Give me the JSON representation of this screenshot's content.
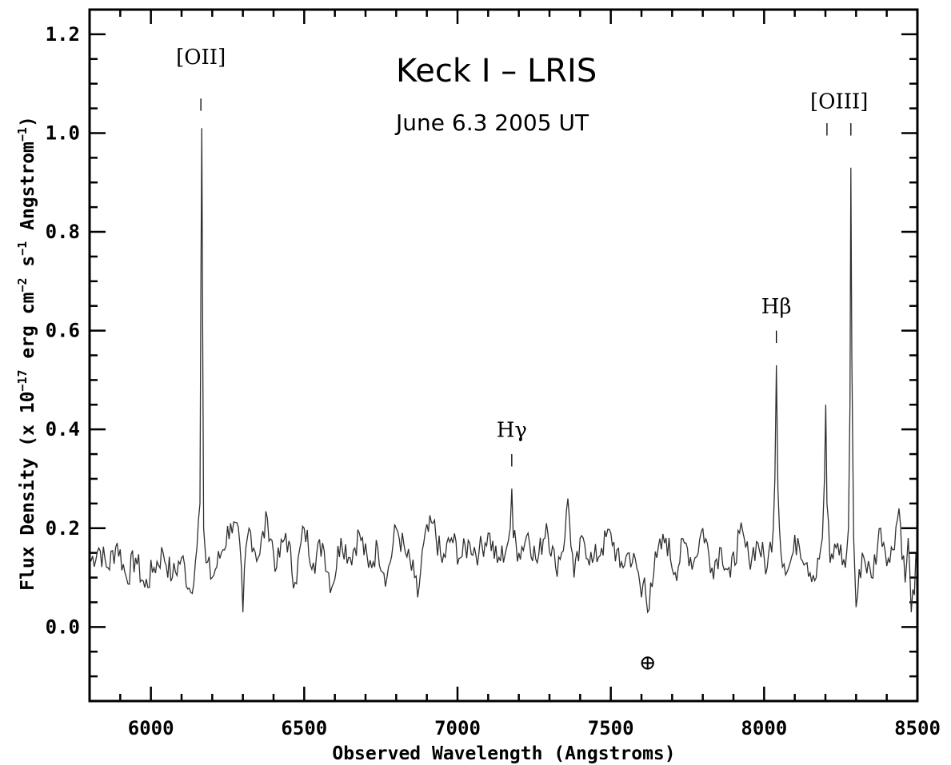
{
  "chart_data": {
    "type": "line",
    "title": "Keck I – LRIS",
    "subtitle": "June 6.3 2005 UT",
    "xlabel": "Observed Wavelength (Angstroms)",
    "ylabel_parts": [
      "Flux Density (x 10",
      "−17",
      " erg cm",
      "−2",
      " s",
      "−1",
      " Angstrom",
      "−1",
      ")"
    ],
    "xlim": [
      5800,
      8500
    ],
    "ylim": [
      -0.15,
      1.25
    ],
    "x_ticks": [
      6000,
      6500,
      7000,
      7500,
      8000,
      8500
    ],
    "y_ticks": [
      0.0,
      0.2,
      0.4,
      0.6,
      0.8,
      1.0,
      1.2
    ],
    "y_tick_labels": [
      "0.0",
      "0.2",
      "0.4",
      "0.6",
      "0.8",
      "1.0",
      "1.2"
    ],
    "line_color": "#303030",
    "continuum_level": 0.15,
    "series": [
      {
        "x": [
          5800,
          5830,
          5860,
          5890,
          5920,
          5950,
          5980,
          6010,
          6040,
          6070,
          6100,
          6130,
          6150,
          6160,
          6163,
          6166,
          6169,
          6172,
          6180,
          6200,
          6230,
          6260,
          6290,
          6300,
          6305,
          6320,
          6350,
          6380,
          6410,
          6440,
          6470,
          6500,
          6530,
          6560,
          6590,
          6620,
          6650,
          6680,
          6710,
          6740,
          6770,
          6800,
          6830,
          6860,
          6870,
          6890,
          6920,
          6950,
          6980,
          7010,
          7040,
          7070,
          7100,
          7130,
          7160,
          7172,
          7177,
          7182,
          7200,
          7230,
          7260,
          7290,
          7320,
          7350,
          7360,
          7380,
          7410,
          7440,
          7470,
          7500,
          7530,
          7560,
          7590,
          7600,
          7610,
          7620,
          7630,
          7650,
          7680,
          7710,
          7740,
          7770,
          7800,
          7830,
          7860,
          7890,
          7920,
          7950,
          7980,
          8010,
          8030,
          8035,
          8040,
          8045,
          8055,
          8080,
          8110,
          8140,
          8170,
          8190,
          8197,
          8201,
          8205,
          8215,
          8240,
          8265,
          8275,
          8280,
          8283,
          8286,
          8292,
          8300,
          8320,
          8350,
          8380,
          8410,
          8440,
          8460,
          8470,
          8480,
          8500
        ],
        "y": [
          0.13,
          0.16,
          0.12,
          0.17,
          0.1,
          0.14,
          0.08,
          0.12,
          0.15,
          0.1,
          0.14,
          0.07,
          0.16,
          0.25,
          0.7,
          1.01,
          0.6,
          0.2,
          0.13,
          0.1,
          0.15,
          0.21,
          0.17,
          0.03,
          0.12,
          0.2,
          0.14,
          0.22,
          0.12,
          0.19,
          0.09,
          0.2,
          0.13,
          0.17,
          0.08,
          0.18,
          0.14,
          0.19,
          0.12,
          0.16,
          0.1,
          0.2,
          0.15,
          0.1,
          0.06,
          0.17,
          0.21,
          0.13,
          0.18,
          0.14,
          0.17,
          0.15,
          0.19,
          0.13,
          0.16,
          0.2,
          0.28,
          0.18,
          0.15,
          0.19,
          0.13,
          0.21,
          0.12,
          0.18,
          0.26,
          0.1,
          0.18,
          0.13,
          0.16,
          0.19,
          0.12,
          0.15,
          0.11,
          0.06,
          0.1,
          0.03,
          0.09,
          0.14,
          0.18,
          0.11,
          0.17,
          0.13,
          0.2,
          0.12,
          0.16,
          0.1,
          0.19,
          0.14,
          0.17,
          0.12,
          0.2,
          0.3,
          0.53,
          0.28,
          0.15,
          0.12,
          0.18,
          0.13,
          0.1,
          0.18,
          0.3,
          0.45,
          0.25,
          0.13,
          0.17,
          0.12,
          0.2,
          0.45,
          0.93,
          0.55,
          0.18,
          0.04,
          0.15,
          0.1,
          0.2,
          0.13,
          0.24,
          0.09,
          0.18,
          0.03,
          0.15
        ]
      }
    ],
    "line_labels": [
      {
        "text": "[OII]",
        "x": 6163,
        "label_y": 1.14,
        "mark_top": 1.07,
        "mark_bottom": 1.045
      },
      {
        "text": "Hγ",
        "x": 7177,
        "label_y": 0.385,
        "mark_top": 0.35,
        "mark_bottom": 0.325
      },
      {
        "text": "Hβ",
        "x": 8040,
        "label_y": 0.635,
        "mark_top": 0.6,
        "mark_bottom": 0.575
      },
      {
        "text": "[OIII]",
        "x": 8245,
        "label_y": 1.05,
        "mark_top": null,
        "mark_bottom": null
      },
      {
        "text": "",
        "x": 8205,
        "label_y": null,
        "mark_top": 1.02,
        "mark_bottom": 0.995
      },
      {
        "text": "",
        "x": 8283,
        "label_y": null,
        "mark_top": 1.02,
        "mark_bottom": 0.995
      }
    ],
    "annotations": [
      {
        "text": "⊕",
        "x": 7620,
        "y": -0.07
      }
    ]
  }
}
